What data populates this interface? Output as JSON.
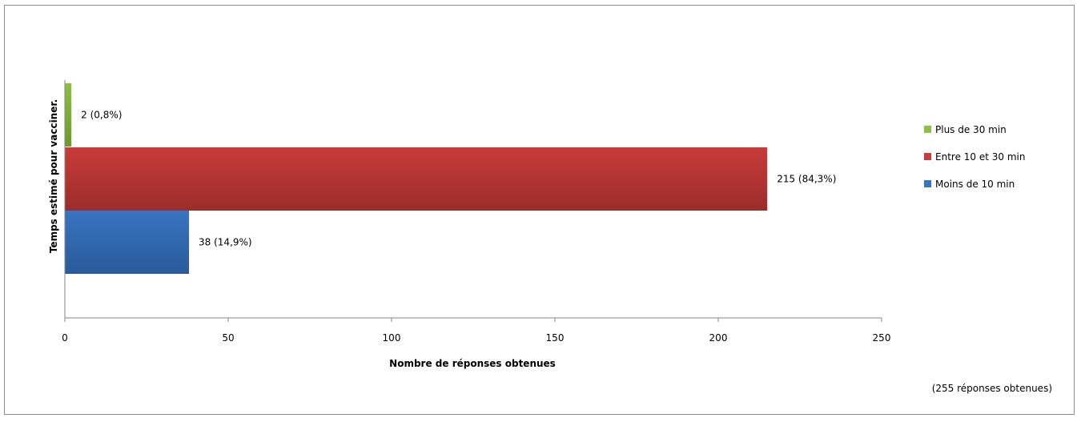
{
  "chart_data": {
    "type": "bar",
    "orientation": "horizontal",
    "title": "",
    "xlabel": "Nombre de réponses obtenues",
    "ylabel": "Temps estimé pour vacciner.",
    "xlim": [
      0,
      250
    ],
    "xticks": [
      0,
      50,
      100,
      150,
      200,
      250
    ],
    "grid": false,
    "legend_position": "right",
    "series": [
      {
        "name": "Moins de 10 min",
        "value": 38,
        "label": "38 (14,9%)",
        "color": "#3874c2",
        "color_dark": "#2a5a9a"
      },
      {
        "name": "Entre 10 et 30 min",
        "value": 215,
        "label": "215 (84,3%)",
        "color": "#c83c3a",
        "color_dark": "#9c2c2a"
      },
      {
        "name": "Plus de 30 min",
        "value": 2,
        "label": "2 (0,8%)",
        "color": "#8cc041",
        "color_dark": "#6c9a2c"
      }
    ],
    "legend_order": [
      "Plus de 30 min",
      "Entre 10 et 30 min",
      "Moins de 10 min"
    ],
    "note": "(255 réponses obtenues)"
  }
}
